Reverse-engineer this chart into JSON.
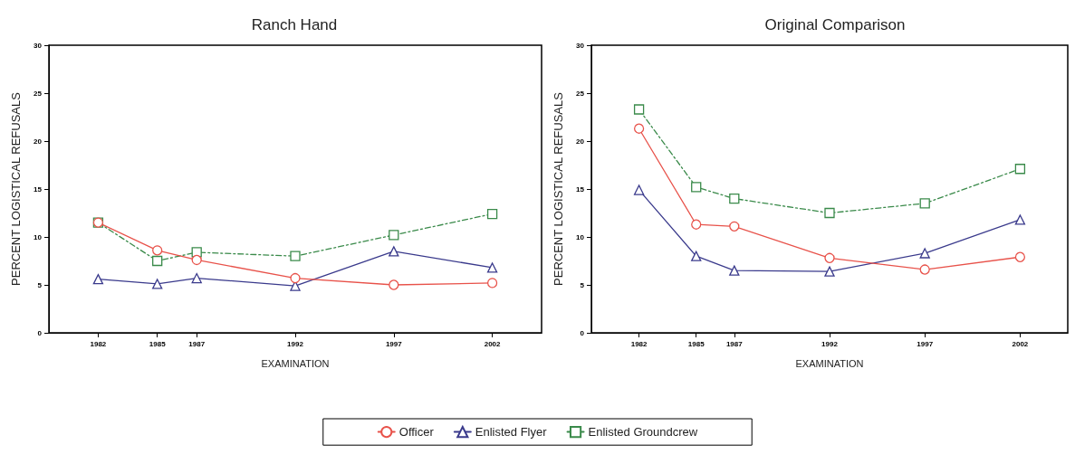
{
  "chart_data": [
    {
      "type": "line",
      "title": "Ranch Hand",
      "xlabel": "EXAMINATION",
      "ylabel": "PERCENT LOGISTICAL REFUSALS",
      "x": [
        1982,
        1985,
        1987,
        1992,
        1997,
        2002
      ],
      "xlim": [
        1979.5,
        2004.5
      ],
      "xticks": [
        1982,
        1985,
        1987,
        1992,
        1997,
        2002
      ],
      "ylim": [
        0,
        30
      ],
      "yticks": [
        0,
        5,
        10,
        15,
        20,
        25,
        30
      ],
      "grid": false,
      "legend": "bottom",
      "series": [
        {
          "name": "Officer",
          "color": "#e8524a",
          "marker": "circle",
          "line_style": "solid",
          "values": [
            11.5,
            8.6,
            7.6,
            5.7,
            5.0,
            5.2
          ]
        },
        {
          "name": "Enlisted Flyer",
          "color": "#3a3a8c",
          "marker": "triangle",
          "line_style": "solid",
          "values": [
            5.6,
            5.1,
            5.7,
            4.9,
            8.5,
            6.8
          ]
        },
        {
          "name": "Enlisted Groundcrew",
          "color": "#3a8a4a",
          "marker": "square",
          "line_style": "dashed",
          "values": [
            11.5,
            7.5,
            8.4,
            8.0,
            10.2,
            12.4
          ]
        }
      ]
    },
    {
      "type": "line",
      "title": "Original Comparison",
      "xlabel": "EXAMINATION",
      "ylabel": "PERCENT LOGISTICAL REFUSALS",
      "x": [
        1982,
        1985,
        1987,
        1992,
        1997,
        2002
      ],
      "xlim": [
        1979.5,
        2004.5
      ],
      "xticks": [
        1982,
        1985,
        1987,
        1992,
        1997,
        2002
      ],
      "ylim": [
        0,
        30
      ],
      "yticks": [
        0,
        5,
        10,
        15,
        20,
        25,
        30
      ],
      "grid": false,
      "legend": "bottom",
      "series": [
        {
          "name": "Officer",
          "color": "#e8524a",
          "marker": "circle",
          "line_style": "solid",
          "values": [
            21.3,
            11.3,
            11.1,
            7.8,
            6.6,
            7.9
          ]
        },
        {
          "name": "Enlisted Flyer",
          "color": "#3a3a8c",
          "marker": "triangle",
          "line_style": "solid",
          "values": [
            14.9,
            8.0,
            6.5,
            6.4,
            8.3,
            11.8
          ]
        },
        {
          "name": "Enlisted Groundcrew",
          "color": "#3a8a4a",
          "marker": "square",
          "line_style": "dashed",
          "values": [
            23.3,
            15.2,
            14.0,
            12.5,
            13.5,
            17.1
          ]
        }
      ]
    }
  ]
}
